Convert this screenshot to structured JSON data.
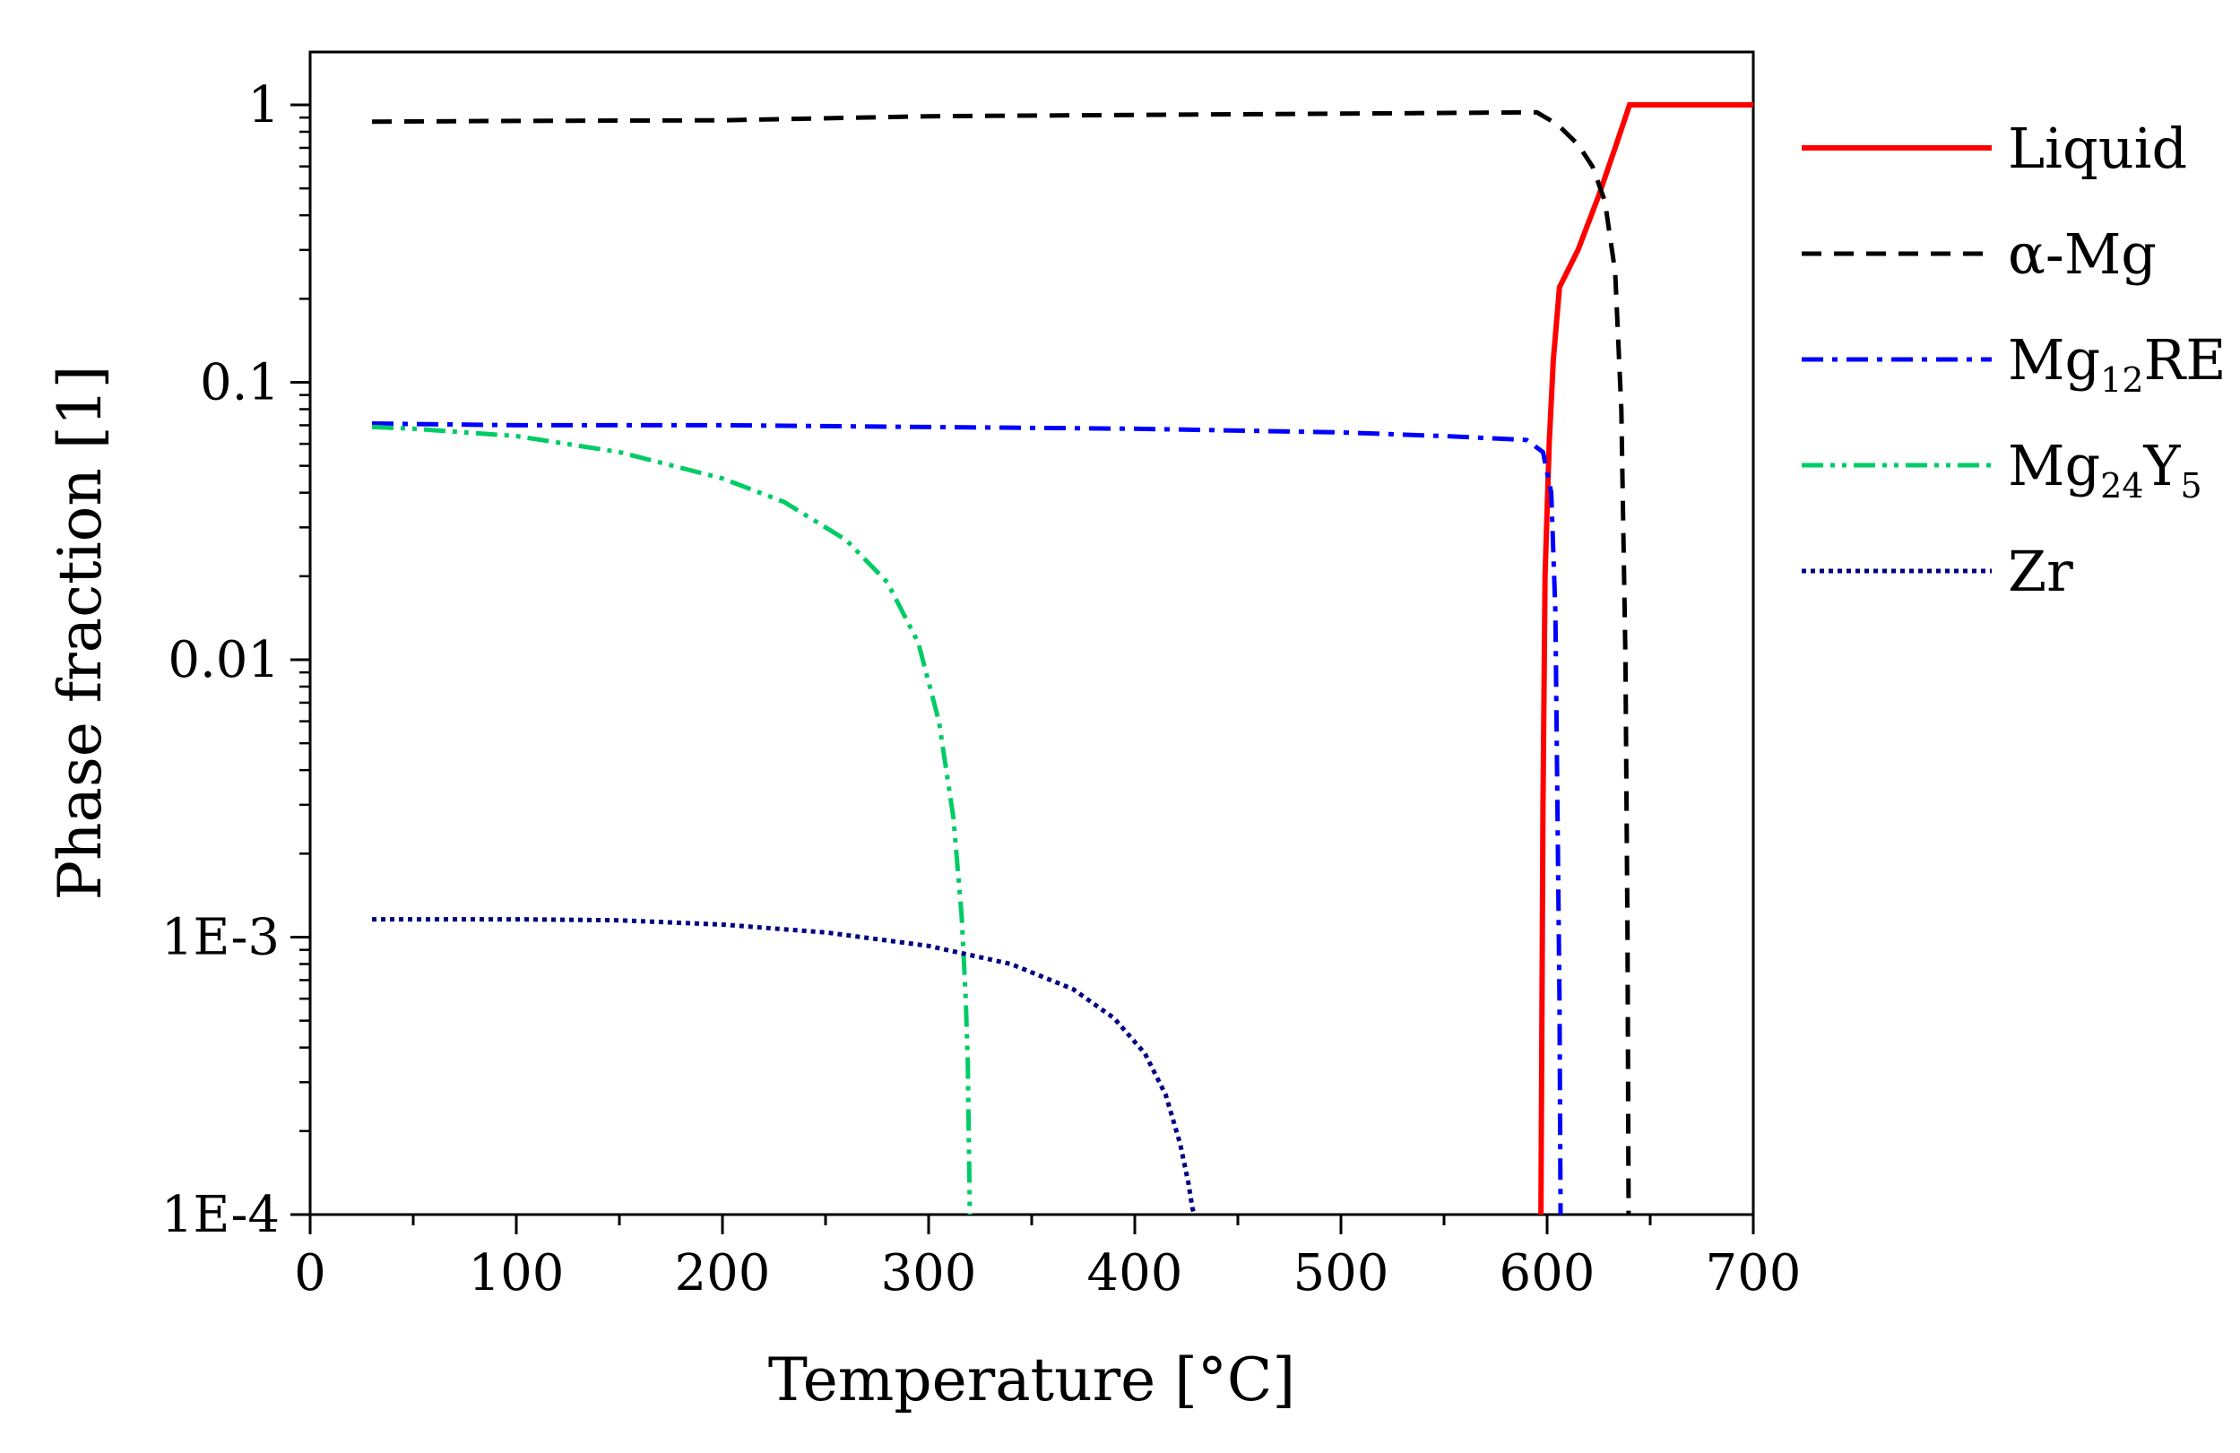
{
  "chart_data": {
    "type": "line",
    "title": "",
    "xlabel": "Temperature [°C]",
    "ylabel": "Phase fraction [1]",
    "xlim": [
      0,
      700
    ],
    "ylim": [
      0.0001,
      1.2
    ],
    "yscale": "log",
    "x_ticks": [
      {
        "value": 0,
        "label": "0"
      },
      {
        "value": 100,
        "label": "100"
      },
      {
        "value": 200,
        "label": "200"
      },
      {
        "value": 300,
        "label": "300"
      },
      {
        "value": 400,
        "label": "400"
      },
      {
        "value": 500,
        "label": "500"
      },
      {
        "value": 600,
        "label": "600"
      },
      {
        "value": 700,
        "label": "700"
      }
    ],
    "y_ticks": [
      {
        "value": 1,
        "label": "1"
      },
      {
        "value": 0.1,
        "label": "0.1"
      },
      {
        "value": 0.01,
        "label": "0.01"
      },
      {
        "value": 0.001,
        "label": "1E-3"
      },
      {
        "value": 0.0001,
        "label": "1E-4"
      }
    ],
    "legend_position": "right",
    "series": [
      {
        "name": "Liquid",
        "label_main": "Liquid",
        "label_sub": "",
        "label_tail": "",
        "color": "#ff0000",
        "style": "solid",
        "points": [
          [
            597,
            0.0001
          ],
          [
            598,
            0.003
          ],
          [
            599,
            0.02
          ],
          [
            601,
            0.06
          ],
          [
            603,
            0.12
          ],
          [
            606,
            0.22
          ],
          [
            615,
            0.3
          ],
          [
            625,
            0.47
          ],
          [
            633,
            0.7
          ],
          [
            640,
            1.0
          ],
          [
            700,
            1.0
          ]
        ]
      },
      {
        "name": "α-Mg",
        "label_main": "α-Mg",
        "label_sub": "",
        "label_tail": "",
        "color": "#000000",
        "style": "dash",
        "points": [
          [
            30,
            0.87
          ],
          [
            100,
            0.875
          ],
          [
            200,
            0.88
          ],
          [
            300,
            0.91
          ],
          [
            400,
            0.92
          ],
          [
            500,
            0.93
          ],
          [
            595,
            0.94
          ],
          [
            605,
            0.85
          ],
          [
            615,
            0.72
          ],
          [
            622,
            0.6
          ],
          [
            628,
            0.45
          ],
          [
            633,
            0.25
          ],
          [
            636,
            0.08
          ],
          [
            638,
            0.01
          ],
          [
            639,
            0.001
          ],
          [
            639.5,
            0.0001
          ]
        ]
      },
      {
        "name": "Mg12RE",
        "label_main": "Mg",
        "label_sub": "12",
        "label_tail": "RE",
        "color": "#0000ff",
        "style": "dashdot",
        "points": [
          [
            30,
            0.071
          ],
          [
            100,
            0.07
          ],
          [
            200,
            0.07
          ],
          [
            300,
            0.069
          ],
          [
            400,
            0.068
          ],
          [
            500,
            0.066
          ],
          [
            550,
            0.064
          ],
          [
            590,
            0.062
          ],
          [
            598,
            0.056
          ],
          [
            602,
            0.04
          ],
          [
            604,
            0.015
          ],
          [
            605,
            0.003
          ],
          [
            606,
            0.0006
          ],
          [
            606.5,
            0.0001
          ]
        ]
      },
      {
        "name": "Mg24Y5",
        "label_main": "Mg",
        "label_sub": "24",
        "label_tail": "Y",
        "label_sub2": "5",
        "color": "#00cc66",
        "style": "dashdotdot",
        "points": [
          [
            30,
            0.069
          ],
          [
            50,
            0.068
          ],
          [
            100,
            0.064
          ],
          [
            150,
            0.056
          ],
          [
            200,
            0.045
          ],
          [
            230,
            0.037
          ],
          [
            260,
            0.027
          ],
          [
            280,
            0.019
          ],
          [
            295,
            0.0115
          ],
          [
            305,
            0.006
          ],
          [
            312,
            0.0027
          ],
          [
            316,
            0.0012
          ],
          [
            318,
            0.0006
          ],
          [
            319,
            0.00035
          ],
          [
            320,
            0.0001
          ]
        ]
      },
      {
        "name": "Zr",
        "label_main": "Zr",
        "label_sub": "",
        "label_tail": "",
        "color": "#000080",
        "style": "dot",
        "points": [
          [
            30,
            0.00116
          ],
          [
            100,
            0.00116
          ],
          [
            150,
            0.00115
          ],
          [
            200,
            0.00111
          ],
          [
            250,
            0.00104
          ],
          [
            300,
            0.00093
          ],
          [
            340,
            0.0008
          ],
          [
            370,
            0.00065
          ],
          [
            390,
            0.00051
          ],
          [
            405,
            0.00038
          ],
          [
            415,
            0.00027
          ],
          [
            422,
            0.00018
          ],
          [
            426,
            0.00013
          ],
          [
            428,
            0.000105
          ],
          [
            429,
            0.0001
          ]
        ]
      }
    ]
  }
}
